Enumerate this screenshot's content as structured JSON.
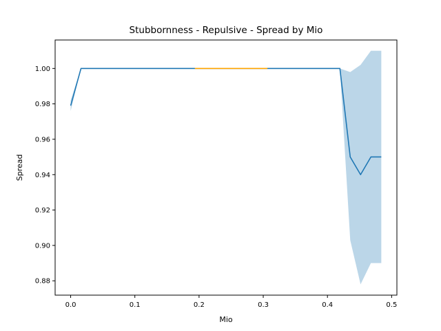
{
  "chart_data": {
    "type": "line",
    "title": "Stubbornness - Repulsive - Spread by Mio",
    "xlabel": "Mio",
    "ylabel": "Spread",
    "xlim": [
      -0.0242,
      0.5082
    ],
    "ylim": [
      0.8719,
      1.0161
    ],
    "xticks": [
      0.0,
      0.1,
      0.2,
      0.3,
      0.4,
      0.5
    ],
    "xtick_labels": [
      "0.0",
      "0.1",
      "0.2",
      "0.3",
      "0.4",
      "0.5"
    ],
    "yticks": [
      0.88,
      0.9,
      0.92,
      0.94,
      0.96,
      0.98,
      1.0
    ],
    "ytick_labels": [
      "0.88",
      "0.90",
      "0.92",
      "0.94",
      "0.96",
      "0.98",
      "1.00"
    ],
    "grid": false,
    "series": [
      {
        "color": "#1f77b4",
        "band_color": "#1f77b4",
        "band_opacity": 0.3,
        "x": [
          0.0,
          0.0161,
          0.0323,
          0.1,
          0.2,
          0.3,
          0.4,
          0.4194,
          0.4355,
          0.4516,
          0.4677,
          0.4839
        ],
        "y": [
          0.979,
          1.0,
          1.0,
          1.0,
          1.0,
          1.0,
          1.0,
          1.0,
          0.95,
          0.94,
          0.95,
          0.95
        ],
        "lower": [
          0.976,
          1.0,
          1.0,
          1.0,
          1.0,
          1.0,
          1.0,
          1.0,
          0.903,
          0.878,
          0.89,
          0.89
        ],
        "upper": [
          0.982,
          1.0,
          1.0,
          1.0,
          1.0,
          1.0,
          1.0,
          1.0,
          0.998,
          1.002,
          1.01,
          1.01
        ]
      },
      {
        "color": "#ffa500",
        "x": [
          0.1935,
          0.3065
        ],
        "y": [
          1.0,
          1.0
        ]
      }
    ]
  }
}
